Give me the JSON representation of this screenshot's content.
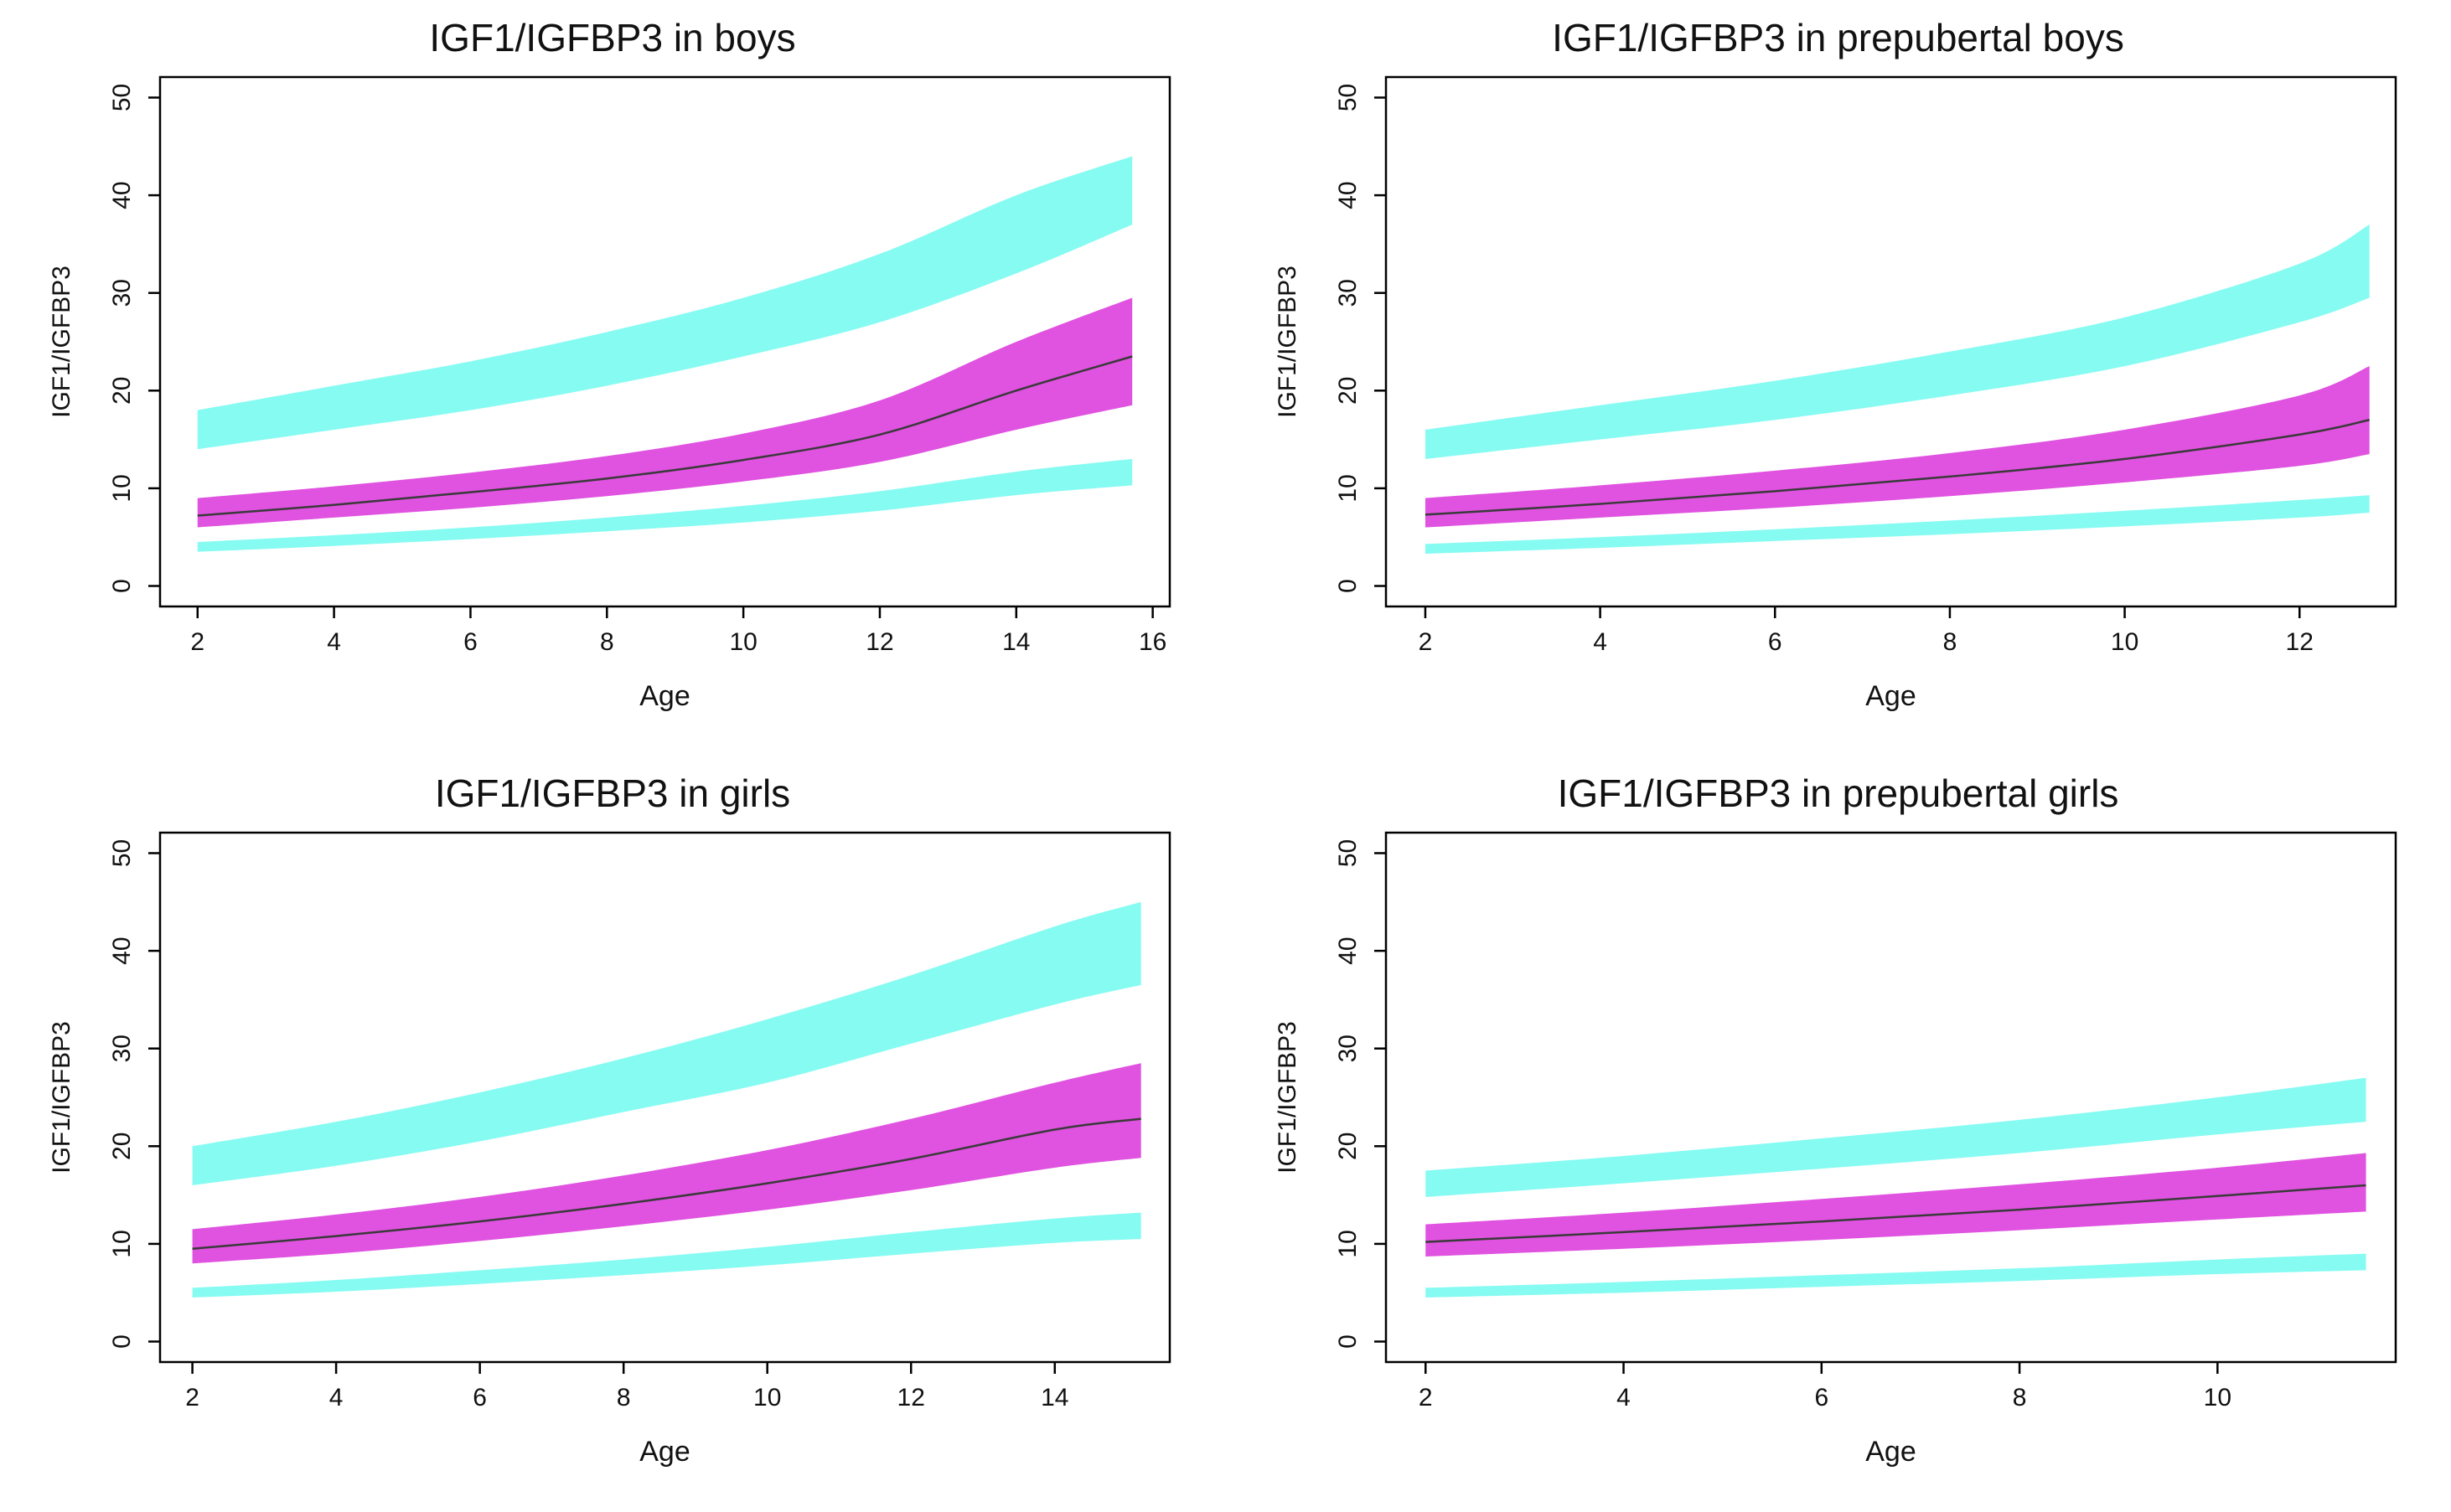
{
  "page": {
    "background": "#ffffff"
  },
  "colors": {
    "outer_band": "#86FBF2",
    "inner_band": "#E052E0",
    "median_line": "#3a3a3a",
    "axis": "#000000"
  },
  "chart_data": [
    {
      "type": "area",
      "title": "IGF1/IGFBP3 in boys",
      "xlabel": "Age",
      "ylabel": "IGF1/IGFBP3",
      "xlim": [
        1.45,
        16.25
      ],
      "ylim": [
        -2.1,
        52.1
      ],
      "xticks": [
        2,
        4,
        6,
        8,
        10,
        12,
        14,
        16
      ],
      "yticks": [
        0,
        10,
        20,
        30,
        40,
        50
      ],
      "grid": false,
      "legend": "none",
      "x": [
        2,
        4,
        6,
        8,
        10,
        12,
        14,
        15.7
      ],
      "bands": [
        {
          "name": "upper-reference-band",
          "color": "#86FBF2",
          "high": [
            18,
            20.5,
            23,
            26,
            29.5,
            34,
            40,
            44
          ],
          "low": [
            14,
            16,
            18,
            20.5,
            23.5,
            27,
            32,
            37
          ]
        },
        {
          "name": "median-reference-band",
          "color": "#E052E0",
          "high": [
            9,
            10.2,
            11.6,
            13.3,
            15.6,
            19,
            25,
            29.5
          ],
          "low": [
            6,
            7,
            8,
            9.2,
            10.7,
            12.7,
            16,
            18.5
          ]
        },
        {
          "name": "lower-reference-band",
          "color": "#86FBF2",
          "high": [
            4.5,
            5.2,
            6,
            7,
            8.2,
            9.7,
            11.7,
            13
          ],
          "low": [
            3.5,
            4.1,
            4.8,
            5.6,
            6.5,
            7.7,
            9.3,
            10.3
          ]
        }
      ],
      "median_line": {
        "name": "median-curve",
        "color": "#3a3a3a",
        "values": [
          7.2,
          8.3,
          9.6,
          11,
          12.9,
          15.5,
          20,
          23.5
        ]
      }
    },
    {
      "type": "area",
      "title": "IGF1/IGFBP3 in prepubertal boys",
      "xlabel": "Age",
      "ylabel": "IGF1/IGFBP3",
      "xlim": [
        1.55,
        13.1
      ],
      "ylim": [
        -2.1,
        52.1
      ],
      "xticks": [
        2,
        4,
        6,
        8,
        10,
        12
      ],
      "yticks": [
        0,
        10,
        20,
        30,
        40,
        50
      ],
      "grid": false,
      "legend": "none",
      "x": [
        2,
        4,
        6,
        8,
        10,
        12,
        12.8
      ],
      "bands": [
        {
          "name": "upper-reference-band",
          "color": "#86FBF2",
          "high": [
            16,
            18.5,
            21,
            24,
            27.5,
            33,
            37
          ],
          "low": [
            13,
            15,
            17,
            19.5,
            22.5,
            27,
            29.5
          ]
        },
        {
          "name": "median-reference-band",
          "color": "#E052E0",
          "high": [
            9,
            10.3,
            11.8,
            13.6,
            16,
            19.5,
            22.5
          ],
          "low": [
            6,
            7,
            8,
            9.2,
            10.6,
            12.3,
            13.5
          ]
        },
        {
          "name": "lower-reference-band",
          "color": "#86FBF2",
          "high": [
            4.3,
            5,
            5.8,
            6.7,
            7.7,
            8.8,
            9.3
          ],
          "low": [
            3.3,
            3.9,
            4.6,
            5.3,
            6.1,
            7,
            7.5
          ]
        }
      ],
      "median_line": {
        "name": "median-curve",
        "color": "#3a3a3a",
        "values": [
          7.3,
          8.4,
          9.7,
          11.2,
          13,
          15.5,
          17
        ]
      }
    },
    {
      "type": "area",
      "title": "IGF1/IGFBP3 in girls",
      "xlabel": "Age",
      "ylabel": "IGF1/IGFBP3",
      "xlim": [
        1.55,
        15.6
      ],
      "ylim": [
        -2.1,
        52.1
      ],
      "xticks": [
        2,
        4,
        6,
        8,
        10,
        12,
        14
      ],
      "yticks": [
        0,
        10,
        20,
        30,
        40,
        50
      ],
      "grid": false,
      "legend": "none",
      "x": [
        2,
        4,
        6,
        8,
        10,
        12,
        14,
        15.2
      ],
      "bands": [
        {
          "name": "upper-reference-band",
          "color": "#86FBF2",
          "high": [
            20,
            22.5,
            25.5,
            29,
            33,
            37.5,
            42.5,
            45
          ],
          "low": [
            16,
            18,
            20.5,
            23.5,
            26.5,
            30.5,
            34.5,
            36.5
          ]
        },
        {
          "name": "median-reference-band",
          "color": "#E052E0",
          "high": [
            11.5,
            13,
            14.8,
            17,
            19.6,
            22.8,
            26.5,
            28.5
          ],
          "low": [
            8,
            9,
            10.3,
            11.8,
            13.5,
            15.5,
            17.8,
            18.8
          ]
        },
        {
          "name": "lower-reference-band",
          "color": "#86FBF2",
          "high": [
            5.5,
            6.3,
            7.3,
            8.4,
            9.7,
            11.2,
            12.6,
            13.2
          ],
          "low": [
            4.5,
            5.1,
            5.9,
            6.8,
            7.8,
            9,
            10.1,
            10.5
          ]
        }
      ],
      "median_line": {
        "name": "median-curve",
        "color": "#3a3a3a",
        "values": [
          9.5,
          10.8,
          12.3,
          14.1,
          16.2,
          18.7,
          21.7,
          22.8
        ]
      }
    },
    {
      "type": "area",
      "title": "IGF1/IGFBP3 in prepubertal girls",
      "xlabel": "Age",
      "ylabel": "IGF1/IGFBP3",
      "xlim": [
        1.6,
        11.8
      ],
      "ylim": [
        -2.1,
        52.1
      ],
      "xticks": [
        2,
        4,
        6,
        8,
        10
      ],
      "yticks": [
        0,
        10,
        20,
        30,
        40,
        50
      ],
      "grid": false,
      "legend": "none",
      "x": [
        2,
        4,
        6,
        8,
        10,
        11.5
      ],
      "bands": [
        {
          "name": "upper-reference-band",
          "color": "#86FBF2",
          "high": [
            17.5,
            19,
            20.8,
            22.7,
            25,
            27
          ],
          "low": [
            14.8,
            16.2,
            17.7,
            19.3,
            21.2,
            22.5
          ]
        },
        {
          "name": "median-reference-band",
          "color": "#E052E0",
          "high": [
            12,
            13.2,
            14.6,
            16.1,
            17.8,
            19.3
          ],
          "low": [
            8.7,
            9.5,
            10.4,
            11.4,
            12.5,
            13.3
          ]
        },
        {
          "name": "lower-reference-band",
          "color": "#86FBF2",
          "high": [
            5.5,
            6.1,
            6.8,
            7.5,
            8.4,
            9
          ],
          "low": [
            4.5,
            5,
            5.6,
            6.2,
            6.9,
            7.3
          ]
        }
      ],
      "median_line": {
        "name": "median-curve",
        "color": "#3a3a3a",
        "values": [
          10.2,
          11.2,
          12.3,
          13.5,
          14.9,
          16
        ]
      }
    }
  ]
}
